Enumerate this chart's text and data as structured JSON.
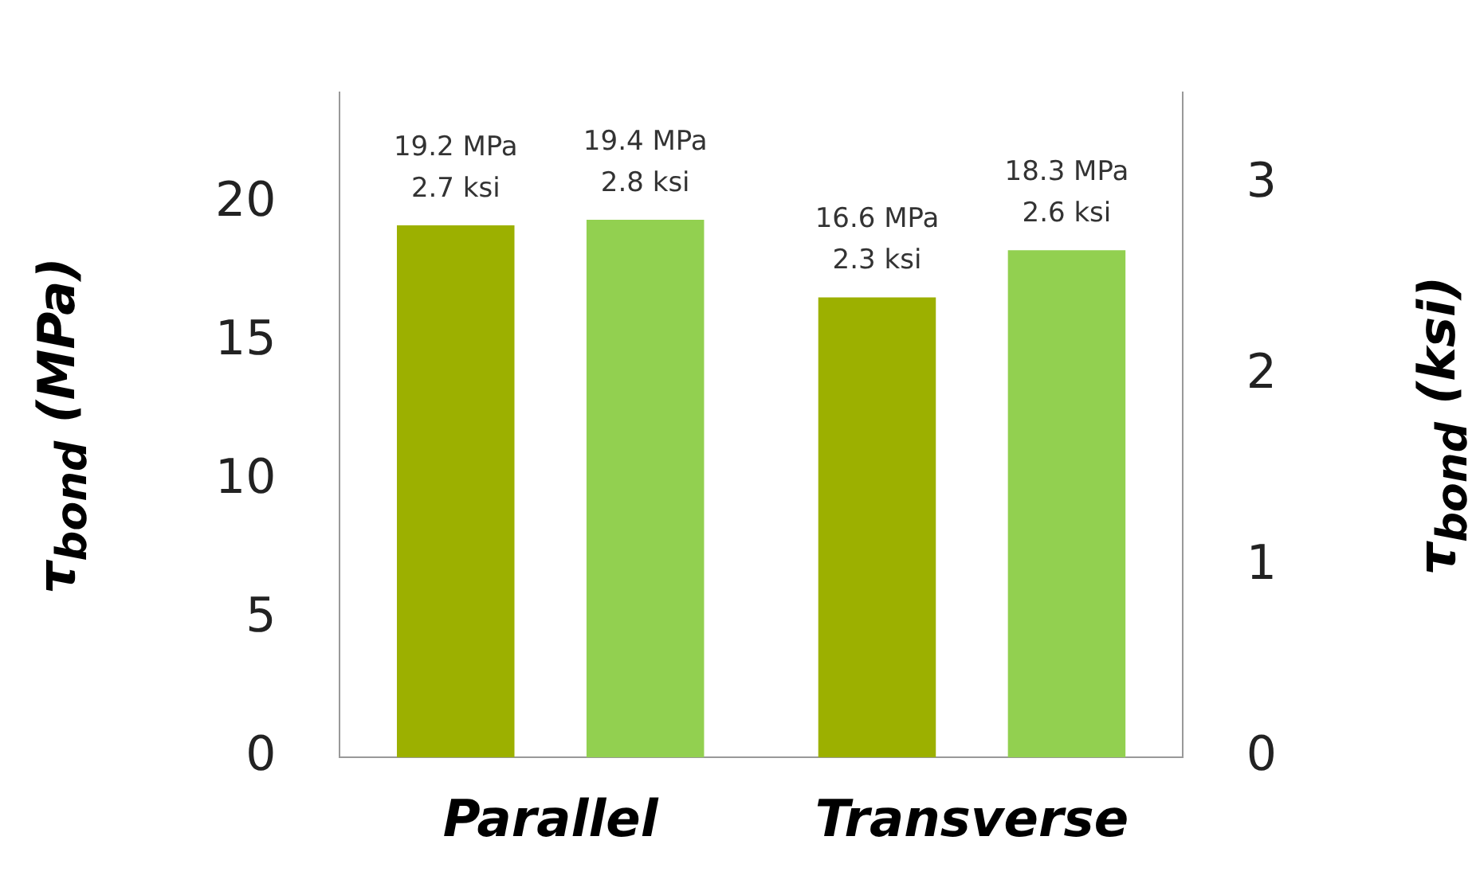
{
  "chart_data": {
    "type": "bar",
    "ylabel": "τ$_{bond}$ (MPa)",
    "y2label": "τ$_{bond}$ (ksi)",
    "categories": [
      "Parallel",
      "Transverse"
    ],
    "series": [
      {
        "color": "#9cb000",
        "values": [
          19.2,
          16.6
        ],
        "value_labels": [
          "19.2 MPa\n2.7 ksi",
          "16.6 MPa\n2.3 ksi"
        ]
      },
      {
        "color": "#92d050",
        "values": [
          19.4,
          18.3
        ],
        "value_labels": [
          "19.4 MPa\n2.8 ksi",
          "18.3 MPa\n2.6 ksi"
        ]
      }
    ],
    "ylim": [
      0,
      24
    ],
    "yticks": [
      0,
      5,
      10,
      15,
      20
    ],
    "y2lim": [
      0,
      3.48
    ],
    "y2ticks": [
      0,
      1,
      2,
      3
    ],
    "grid": false,
    "legend": false
  }
}
